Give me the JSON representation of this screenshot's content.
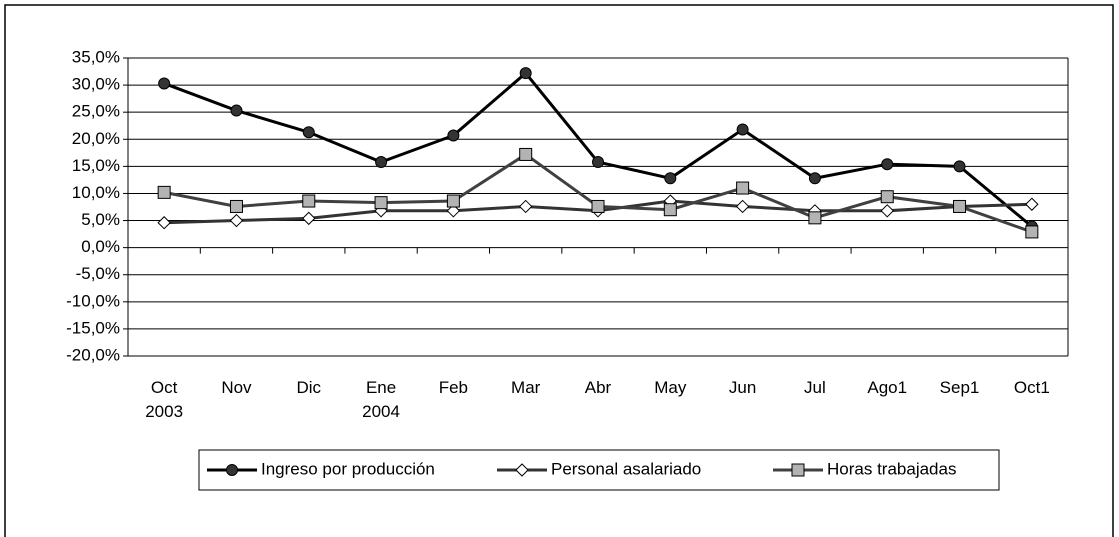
{
  "chart_data": {
    "type": "line",
    "categories": [
      "Oct\n2003",
      "Nov",
      "Dic",
      "Ene\n2004",
      "Feb",
      "Mar",
      "Abr",
      "May",
      "Jun",
      "Jul",
      "Ago1",
      "Sep1",
      "Oct1"
    ],
    "series": [
      {
        "name": "Ingreso por producción",
        "color": "#000000",
        "marker": "circle",
        "values": [
          30.3,
          25.3,
          21.3,
          15.8,
          20.7,
          32.2,
          15.8,
          12.8,
          21.8,
          12.8,
          15.4,
          15.0,
          3.9
        ]
      },
      {
        "name": "Personal asalariado",
        "color": "#333333",
        "marker": "diamond",
        "values": [
          4.6,
          5.0,
          5.4,
          6.8,
          6.8,
          7.6,
          6.8,
          8.6,
          7.6,
          6.8,
          6.8,
          7.6,
          8.0
        ]
      },
      {
        "name": "Horas trabajadas",
        "color": "#404040",
        "marker": "square",
        "values": [
          10.2,
          7.6,
          8.6,
          8.3,
          8.6,
          17.2,
          7.6,
          7.0,
          11.0,
          5.5,
          9.4,
          7.6,
          2.9
        ]
      }
    ],
    "ylim": [
      -20,
      35
    ],
    "yticks": [
      {
        "value": -20,
        "label": "-20,0%"
      },
      {
        "value": -15,
        "label": "-15,0%"
      },
      {
        "value": -10,
        "label": "-10,0%"
      },
      {
        "value": -5,
        "label": "-5,0%"
      },
      {
        "value": 0,
        "label": "0,0%"
      },
      {
        "value": 5,
        "label": "5,0%"
      },
      {
        "value": 10,
        "label": "10,0%"
      },
      {
        "value": 15,
        "label": "15,0%"
      },
      {
        "value": 20,
        "label": "20,0%"
      },
      {
        "value": 25,
        "label": "25,0%"
      },
      {
        "value": 30,
        "label": "30,0%"
      },
      {
        "value": 35,
        "label": "35,0%"
      }
    ],
    "grid": true,
    "legend": "bottom"
  }
}
